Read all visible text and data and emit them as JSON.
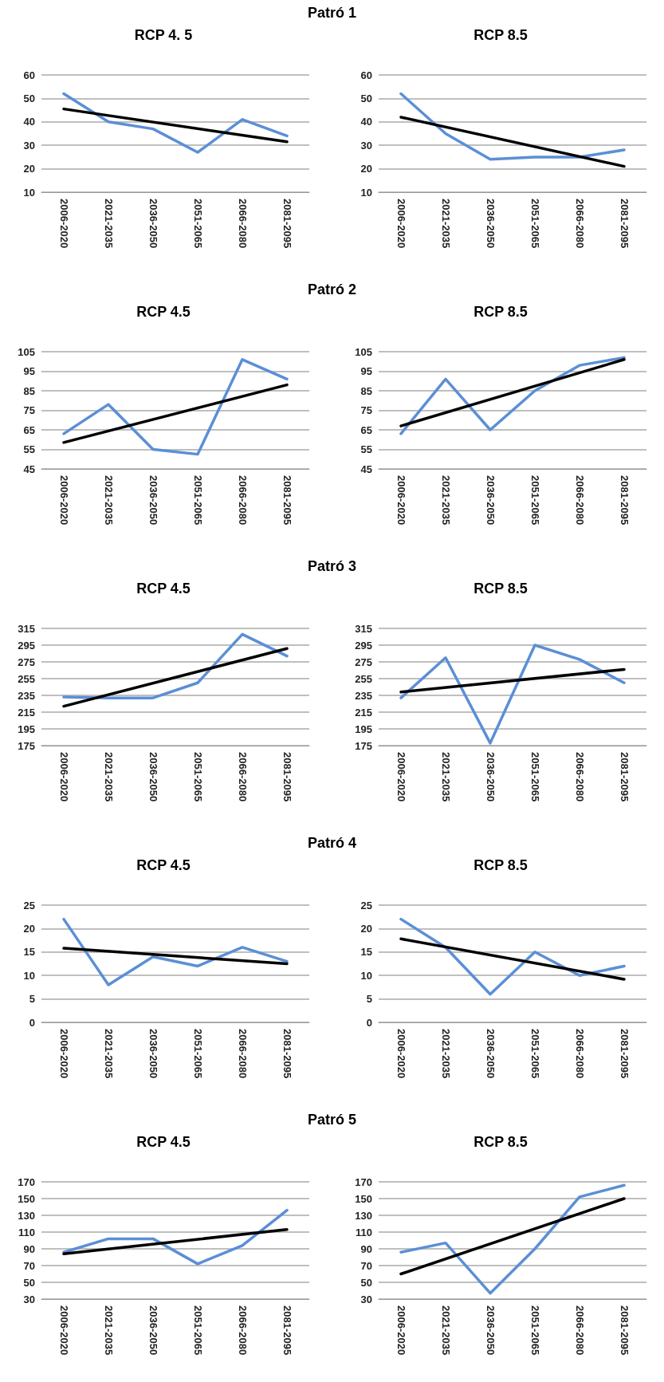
{
  "chart_data": [
    {
      "type": "line",
      "title": "RCP 4. 5",
      "annotations": [
        "Patró 1"
      ],
      "categories": [
        "2006-2020",
        "2021-2035",
        "2036-2050",
        "2051-2065",
        "2066-2080",
        "2081-2095"
      ],
      "ylim": [
        10,
        60
      ],
      "yticks": [
        10,
        20,
        30,
        40,
        50,
        60
      ],
      "grid": "y",
      "marker": "none",
      "series": [
        {
          "color": "#5b8fd6",
          "values": [
            52,
            40,
            37,
            27,
            41,
            34
          ]
        },
        {
          "color": "#000000",
          "x": [
            "2006-2020",
            "2081-2095"
          ],
          "values": [
            45.5,
            31.5
          ]
        }
      ]
    },
    {
      "type": "line",
      "title": "RCP 8.5",
      "categories": [
        "2006-2020",
        "2021-2035",
        "2036-2050",
        "2051-2065",
        "2066-2080",
        "2081-2095"
      ],
      "ylim": [
        10,
        60
      ],
      "yticks": [
        10,
        20,
        30,
        40,
        50,
        60
      ],
      "grid": "y",
      "marker": "none",
      "series": [
        {
          "color": "#5b8fd6",
          "values": [
            52,
            35,
            24,
            25,
            25,
            28
          ]
        },
        {
          "color": "#000000",
          "x": [
            "2006-2020",
            "2081-2095"
          ],
          "values": [
            42,
            21
          ]
        }
      ]
    },
    {
      "type": "line",
      "title": "RCP 4.5",
      "annotations": [
        "Patró 2"
      ],
      "categories": [
        "2006-2020",
        "2021-2035",
        "2036-2050",
        "2051-2065",
        "2066-2080",
        "2081-2095"
      ],
      "ylim": [
        45,
        105
      ],
      "yticks": [
        45,
        55,
        65,
        75,
        85,
        95,
        105
      ],
      "grid": "y",
      "marker": "none",
      "series": [
        {
          "color": "#5b8fd6",
          "values": [
            63,
            78,
            55,
            52.5,
            101,
            91
          ]
        },
        {
          "color": "#000000",
          "x": [
            "2006-2020",
            "2081-2095"
          ],
          "values": [
            58.5,
            88
          ]
        }
      ]
    },
    {
      "type": "line",
      "title": "RCP 8.5",
      "categories": [
        "2006-2020",
        "2021-2035",
        "2036-2050",
        "2051-2065",
        "2066-2080",
        "2081-2095"
      ],
      "ylim": [
        45,
        105
      ],
      "yticks": [
        45,
        55,
        65,
        75,
        85,
        95,
        105
      ],
      "grid": "y",
      "marker": "none",
      "series": [
        {
          "color": "#5b8fd6",
          "values": [
            63,
            91,
            65,
            85,
            98,
            102
          ]
        },
        {
          "color": "#000000",
          "x": [
            "2006-2020",
            "2081-2095"
          ],
          "values": [
            67,
            101
          ]
        }
      ]
    },
    {
      "type": "line",
      "title": "RCP 4.5",
      "annotations": [
        "Patró 3"
      ],
      "categories": [
        "2006-2020",
        "2021-2035",
        "2036-2050",
        "2051-2065",
        "2066-2080",
        "2081-2095"
      ],
      "ylim": [
        175,
        315
      ],
      "yticks": [
        175,
        195,
        215,
        235,
        255,
        275,
        295,
        315
      ],
      "grid": "y",
      "marker": "none",
      "series": [
        {
          "color": "#5b8fd6",
          "values": [
            233,
            232,
            232,
            250,
            308,
            282
          ]
        },
        {
          "color": "#000000",
          "x": [
            "2006-2020",
            "2081-2095"
          ],
          "values": [
            222,
            291
          ]
        }
      ]
    },
    {
      "type": "line",
      "title": "RCP 8.5",
      "categories": [
        "2006-2020",
        "2021-2035",
        "2036-2050",
        "2051-2065",
        "2066-2080",
        "2081-2095"
      ],
      "ylim": [
        175,
        315
      ],
      "yticks": [
        175,
        195,
        215,
        235,
        255,
        275,
        295,
        315
      ],
      "grid": "y",
      "marker": "none",
      "series": [
        {
          "color": "#5b8fd6",
          "values": [
            232,
            280,
            178,
            295,
            278,
            250
          ]
        },
        {
          "color": "#000000",
          "x": [
            "2006-2020",
            "2081-2095"
          ],
          "values": [
            239,
            266
          ]
        }
      ]
    },
    {
      "type": "line",
      "title": "RCP 4.5",
      "annotations": [
        "Patró 4"
      ],
      "categories": [
        "2006-2020",
        "2021-2035",
        "2036-2050",
        "2051-2065",
        "2066-2080",
        "2081-2095"
      ],
      "ylim": [
        0,
        25
      ],
      "yticks": [
        0,
        5,
        10,
        15,
        20,
        25
      ],
      "grid": "y",
      "marker": "none",
      "series": [
        {
          "color": "#5b8fd6",
          "values": [
            22,
            8,
            14,
            12,
            16,
            13
          ]
        },
        {
          "color": "#000000",
          "x": [
            "2006-2020",
            "2081-2095"
          ],
          "values": [
            15.8,
            12.5
          ]
        }
      ]
    },
    {
      "type": "line",
      "title": "RCP 8.5",
      "categories": [
        "2006-2020",
        "2021-2035",
        "2036-2050",
        "2051-2065",
        "2066-2080",
        "2081-2095"
      ],
      "ylim": [
        0,
        25
      ],
      "yticks": [
        0,
        5,
        10,
        15,
        20,
        25
      ],
      "grid": "y",
      "marker": "none",
      "series": [
        {
          "color": "#5b8fd6",
          "values": [
            22,
            16,
            6,
            15,
            10,
            12
          ]
        },
        {
          "color": "#000000",
          "x": [
            "2006-2020",
            "2081-2095"
          ],
          "values": [
            17.8,
            9.2
          ]
        }
      ]
    },
    {
      "type": "line",
      "title": "RCP 4.5",
      "annotations": [
        "Patró 5"
      ],
      "categories": [
        "2006-2020",
        "2021-2035",
        "2036-2050",
        "2051-2065",
        "2066-2080",
        "2081-2095"
      ],
      "ylim": [
        30,
        170
      ],
      "yticks": [
        30,
        50,
        70,
        90,
        110,
        130,
        150,
        170
      ],
      "grid": "y",
      "marker": "none",
      "series": [
        {
          "color": "#5b8fd6",
          "values": [
            86,
            102,
            102,
            72,
            94,
            136
          ]
        },
        {
          "color": "#000000",
          "x": [
            "2006-2020",
            "2081-2095"
          ],
          "values": [
            84,
            113
          ]
        }
      ]
    },
    {
      "type": "line",
      "title": "RCP 8.5",
      "categories": [
        "2006-2020",
        "2021-2035",
        "2036-2050",
        "2051-2065",
        "2066-2080",
        "2081-2095"
      ],
      "ylim": [
        30,
        170
      ],
      "yticks": [
        30,
        50,
        70,
        90,
        110,
        130,
        150,
        170
      ],
      "grid": "y",
      "marker": "none",
      "series": [
        {
          "color": "#5b8fd6",
          "values": [
            86,
            97,
            37,
            90,
            152,
            166
          ]
        },
        {
          "color": "#000000",
          "x": [
            "2006-2020",
            "2081-2095"
          ],
          "values": [
            60,
            150
          ]
        }
      ]
    }
  ]
}
